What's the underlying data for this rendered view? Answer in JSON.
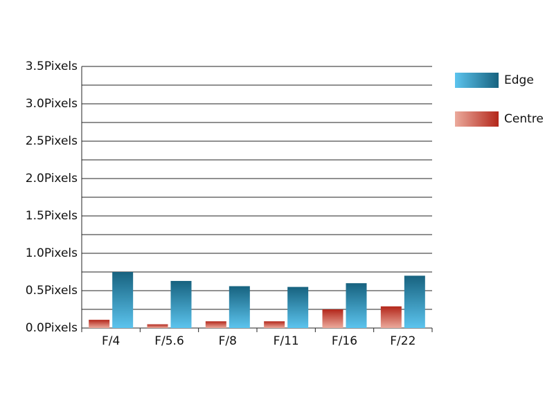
{
  "chart_data": {
    "type": "bar",
    "categories": [
      "F/4",
      "F/5.6",
      "F/8",
      "F/11",
      "F/16",
      "F/22"
    ],
    "series": [
      {
        "name": "Centre",
        "color": "#b3261a",
        "light_color": "#ebaa9c",
        "values": [
          0.11,
          0.05,
          0.09,
          0.09,
          0.25,
          0.29
        ]
      },
      {
        "name": "Edge",
        "color": "#17627f",
        "light_color": "#5cc4ee",
        "values": [
          0.75,
          0.63,
          0.56,
          0.55,
          0.6,
          0.7
        ]
      }
    ],
    "legend_order": [
      1,
      0
    ],
    "ylim": [
      0,
      3.5
    ],
    "yticks": [
      {
        "value": 0,
        "label": "0.0Pixels"
      },
      {
        "value": 0.5,
        "label": "0.5Pixels"
      },
      {
        "value": 1,
        "label": "1.0Pixels"
      },
      {
        "value": 1.5,
        "label": "1.5Pixels"
      },
      {
        "value": 2,
        "label": "2.0Pixels"
      },
      {
        "value": 2.5,
        "label": "2.5Pixels"
      },
      {
        "value": 3,
        "label": "3.0Pixels"
      },
      {
        "value": 3.5,
        "label": "3.5Pixels"
      }
    ],
    "grid_yticks": [
      0.25,
      0.5,
      0.75,
      1,
      1.25,
      1.5,
      1.75,
      2,
      2.25,
      2.5,
      2.75,
      3,
      3.25,
      3.5
    ],
    "grid": true,
    "legend": "right"
  }
}
